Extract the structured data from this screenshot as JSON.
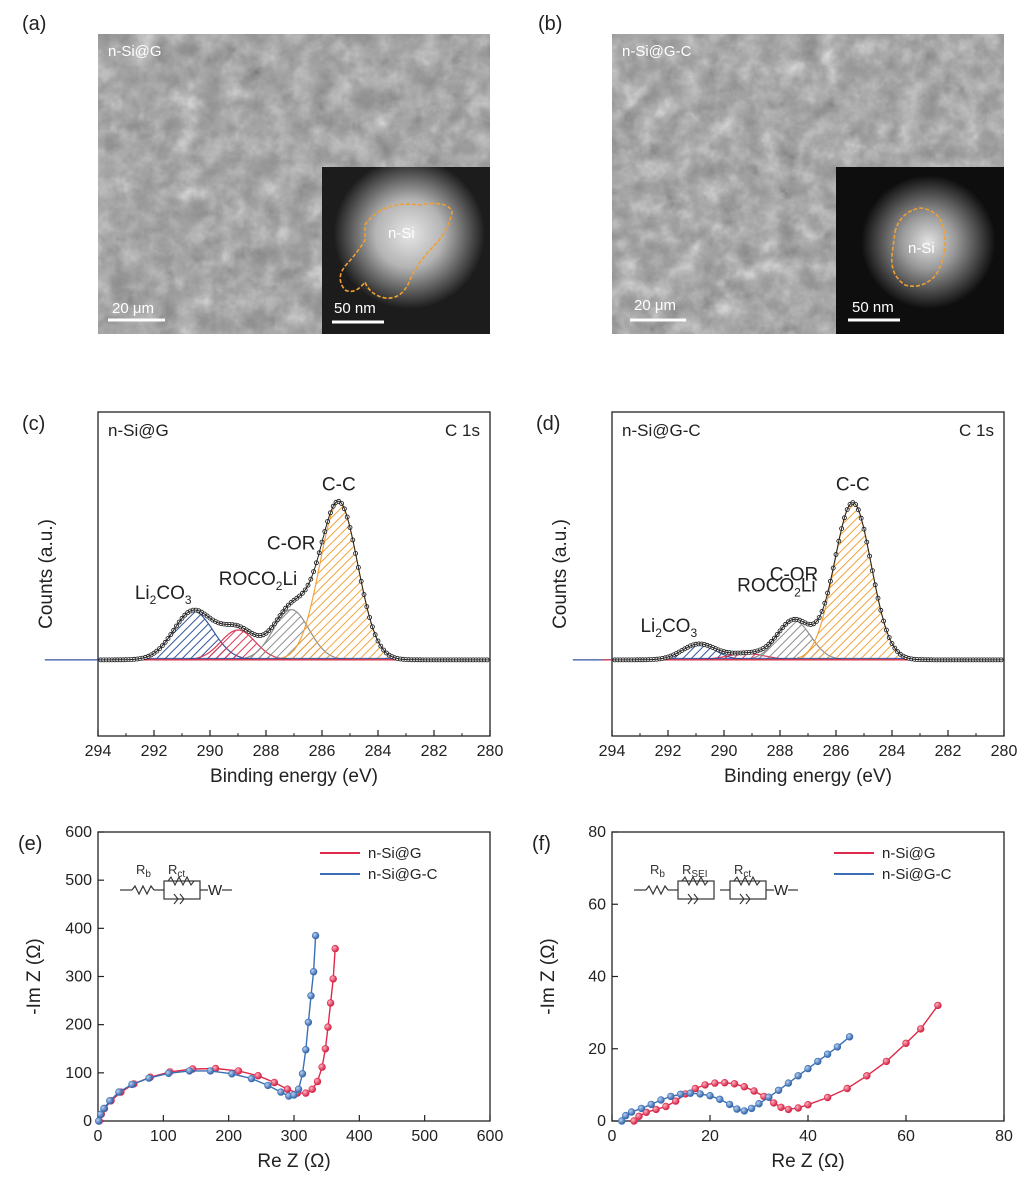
{
  "panels": {
    "a": {
      "label": "(a)",
      "sample": "n-Si@G",
      "scale_main": "20 μm",
      "scale_inset": "50 nm",
      "inset_label": "n-Si"
    },
    "b": {
      "label": "(b)",
      "sample": "n-Si@G-C",
      "scale_main": "20 μm",
      "scale_inset": "50 nm",
      "inset_label": "n-Si"
    }
  },
  "colors": {
    "li2co3": "#2b4e9a",
    "roco2li": "#d9304b",
    "cor": "#8a8a8a",
    "cc": "#f0a033",
    "red_series": "#e0284a",
    "blue_series": "#3a6fb5"
  },
  "chart_data": [
    {
      "id": "c",
      "type": "area",
      "panel_label": "(c)",
      "sample": "n-Si@G",
      "region": "C 1s",
      "xlabel": "Binding energy (eV)",
      "ylabel": "Counts (a.u.)",
      "xlim": [
        294,
        280
      ],
      "x_reversed": true,
      "xticks": [
        "294",
        "292",
        "290",
        "288",
        "286",
        "284",
        "282",
        "280"
      ],
      "ylim": [
        0,
        1.05
      ],
      "baseline": 0.0,
      "peaks": [
        {
          "name": "Li2CO3",
          "label_main": "Li",
          "label_sub1": "2",
          "label_mid": "CO",
          "label_sub2": "3",
          "label_end": "",
          "center": 290.6,
          "height": 0.31,
          "fwhm": 1.65,
          "color": "#2b4e9a"
        },
        {
          "name": "ROCO2Li",
          "label_main": "ROCO",
          "label_sub1": "2",
          "label_mid": "Li",
          "label_sub2": "",
          "label_end": "",
          "center": 289.0,
          "height": 0.19,
          "fwhm": 1.45,
          "color": "#d9304b"
        },
        {
          "name": "C-OR",
          "label_main": "C-OR",
          "label_sub1": "",
          "label_mid": "",
          "label_sub2": "",
          "label_end": "",
          "center": 287.1,
          "height": 0.32,
          "fwhm": 1.5,
          "color": "#8a8a8a"
        },
        {
          "name": "C-C",
          "label_main": "C-C",
          "label_sub1": "",
          "label_mid": "",
          "label_sub2": "",
          "label_end": "",
          "center": 285.4,
          "height": 1.0,
          "fwhm": 1.6,
          "color": "#f0a033"
        }
      ]
    },
    {
      "id": "d",
      "type": "area",
      "panel_label": "(d)",
      "sample": "n-Si@G-C",
      "region": "C 1s",
      "xlabel": "Binding energy (eV)",
      "ylabel": "Counts (a.u.)",
      "xlim": [
        294,
        280
      ],
      "x_reversed": true,
      "xticks": [
        "294",
        "292",
        "290",
        "288",
        "286",
        "284",
        "282",
        "280"
      ],
      "ylim": [
        0,
        1.05
      ],
      "baseline": 0.0,
      "peaks": [
        {
          "name": "Li2CO3",
          "label_main": "Li",
          "label_sub1": "2",
          "label_mid": "CO",
          "label_sub2": "3",
          "label_end": "",
          "center": 290.9,
          "height": 0.1,
          "fwhm": 1.4,
          "color": "#2b4e9a"
        },
        {
          "name": "ROCO2Li",
          "label_main": "ROCO",
          "label_sub1": "2",
          "label_mid": "Li",
          "label_sub2": "",
          "label_end": "",
          "center": 289.2,
          "height": 0.04,
          "fwhm": 1.6,
          "color": "#d9304b"
        },
        {
          "name": "C-OR",
          "label_main": "C-OR",
          "label_sub1": "",
          "label_mid": "",
          "label_sub2": "",
          "label_end": "",
          "center": 287.5,
          "height": 0.25,
          "fwhm": 1.4,
          "color": "#8a8a8a"
        },
        {
          "name": "C-C",
          "label_main": "C-C",
          "label_sub1": "",
          "label_mid": "",
          "label_sub2": "",
          "label_end": "",
          "center": 285.4,
          "height": 1.0,
          "fwhm": 1.55,
          "color": "#f0a033"
        }
      ]
    },
    {
      "id": "e",
      "type": "scatter",
      "panel_label": "(e)",
      "xlabel": "Re Z (Ω)",
      "ylabel": "-Im Z (Ω)",
      "xlim": [
        0,
        600
      ],
      "ylim": [
        0,
        600
      ],
      "xticks": [
        "0",
        "100",
        "200",
        "300",
        "400",
        "500",
        "600"
      ],
      "yticks": [
        "0",
        "100",
        "200",
        "300",
        "400",
        "500",
        "600"
      ],
      "circuit": {
        "r1": "R",
        "r1_sub": "b",
        "r2": "R",
        "r2_sub": "ct",
        "w": "W"
      },
      "series": [
        {
          "name": "n-Si@G",
          "color": "#e0284a",
          "points": [
            [
              2,
              0
            ],
            [
              5,
              14
            ],
            [
              10,
              26
            ],
            [
              20,
              42
            ],
            [
              35,
              60
            ],
            [
              55,
              77
            ],
            [
              80,
              91
            ],
            [
              110,
              102
            ],
            [
              145,
              108
            ],
            [
              180,
              109
            ],
            [
              215,
              104
            ],
            [
              245,
              94
            ],
            [
              270,
              80
            ],
            [
              290,
              66
            ],
            [
              305,
              58
            ],
            [
              318,
              58
            ],
            [
              328,
              66
            ],
            [
              336,
              82
            ],
            [
              343,
              112
            ],
            [
              348,
              150
            ],
            [
              352,
              195
            ],
            [
              356,
              245
            ],
            [
              360,
              295
            ],
            [
              363,
              358
            ]
          ]
        },
        {
          "name": "n-Si@G-C",
          "color": "#3a6fb5",
          "points": [
            [
              1,
              0
            ],
            [
              4,
              14
            ],
            [
              9,
              26
            ],
            [
              18,
              42
            ],
            [
              32,
              60
            ],
            [
              52,
              76
            ],
            [
              78,
              89
            ],
            [
              108,
              99
            ],
            [
              140,
              104
            ],
            [
              172,
              104
            ],
            [
              205,
              98
            ],
            [
              235,
              88
            ],
            [
              260,
              74
            ],
            [
              280,
              60
            ],
            [
              292,
              52
            ],
            [
              300,
              54
            ],
            [
              307,
              66
            ],
            [
              313,
              98
            ],
            [
              318,
              148
            ],
            [
              322,
              205
            ],
            [
              326,
              260
            ],
            [
              330,
              310
            ],
            [
              333,
              385
            ]
          ]
        }
      ]
    },
    {
      "id": "f",
      "type": "scatter",
      "panel_label": "(f)",
      "xlabel": "Re Z (Ω)",
      "ylabel": "-Im Z (Ω)",
      "xlim": [
        0,
        80
      ],
      "ylim": [
        0,
        80
      ],
      "xticks": [
        "0",
        "20",
        "40",
        "60",
        "80"
      ],
      "yticks": [
        "0",
        "20",
        "40",
        "60",
        "80"
      ],
      "circuit": {
        "r1": "R",
        "r1_sub": "b",
        "r2": "R",
        "r2_sub": "SEI",
        "r3": "R",
        "r3_sub": "ct",
        "w": "W"
      },
      "series": [
        {
          "name": "n-Si@G",
          "color": "#e0284a",
          "points": [
            [
              4.5,
              0
            ],
            [
              5.5,
              1.3
            ],
            [
              7,
              2.4
            ],
            [
              9,
              3.2
            ],
            [
              11,
              4
            ],
            [
              13,
              5.5
            ],
            [
              15,
              7.5
            ],
            [
              17,
              9
            ],
            [
              19,
              10
            ],
            [
              21,
              10.5
            ],
            [
              23,
              10.6
            ],
            [
              25,
              10.3
            ],
            [
              27,
              9.5
            ],
            [
              29,
              8.3
            ],
            [
              31,
              6.8
            ],
            [
              33,
              5
            ],
            [
              34.5,
              3.8
            ],
            [
              36,
              3.2
            ],
            [
              38,
              3.6
            ],
            [
              40,
              4.5
            ],
            [
              44,
              6.5
            ],
            [
              48,
              9
            ],
            [
              52,
              12.5
            ],
            [
              56,
              16.5
            ],
            [
              60,
              21.5
            ],
            [
              63,
              25.5
            ],
            [
              66.5,
              32
            ]
          ]
        },
        {
          "name": "n-Si@G-C",
          "color": "#3a6fb5",
          "points": [
            [
              2,
              0
            ],
            [
              2.8,
              1.5
            ],
            [
              4,
              2.5
            ],
            [
              6,
              3.5
            ],
            [
              8,
              4.6
            ],
            [
              10,
              5.8
            ],
            [
              12,
              6.8
            ],
            [
              14,
              7.4
            ],
            [
              16,
              7.7
            ],
            [
              18,
              7.5
            ],
            [
              20,
              7
            ],
            [
              22,
              6
            ],
            [
              24,
              4.6
            ],
            [
              25.5,
              3.3
            ],
            [
              27,
              2.8
            ],
            [
              28.5,
              3.5
            ],
            [
              30,
              4.8
            ],
            [
              32,
              6.6
            ],
            [
              34,
              8.5
            ],
            [
              36,
              10.5
            ],
            [
              38,
              12.5
            ],
            [
              40,
              14.5
            ],
            [
              42,
              16.5
            ],
            [
              44,
              18.5
            ],
            [
              46,
              20.5
            ],
            [
              48.5,
              23.3
            ]
          ]
        }
      ]
    }
  ]
}
